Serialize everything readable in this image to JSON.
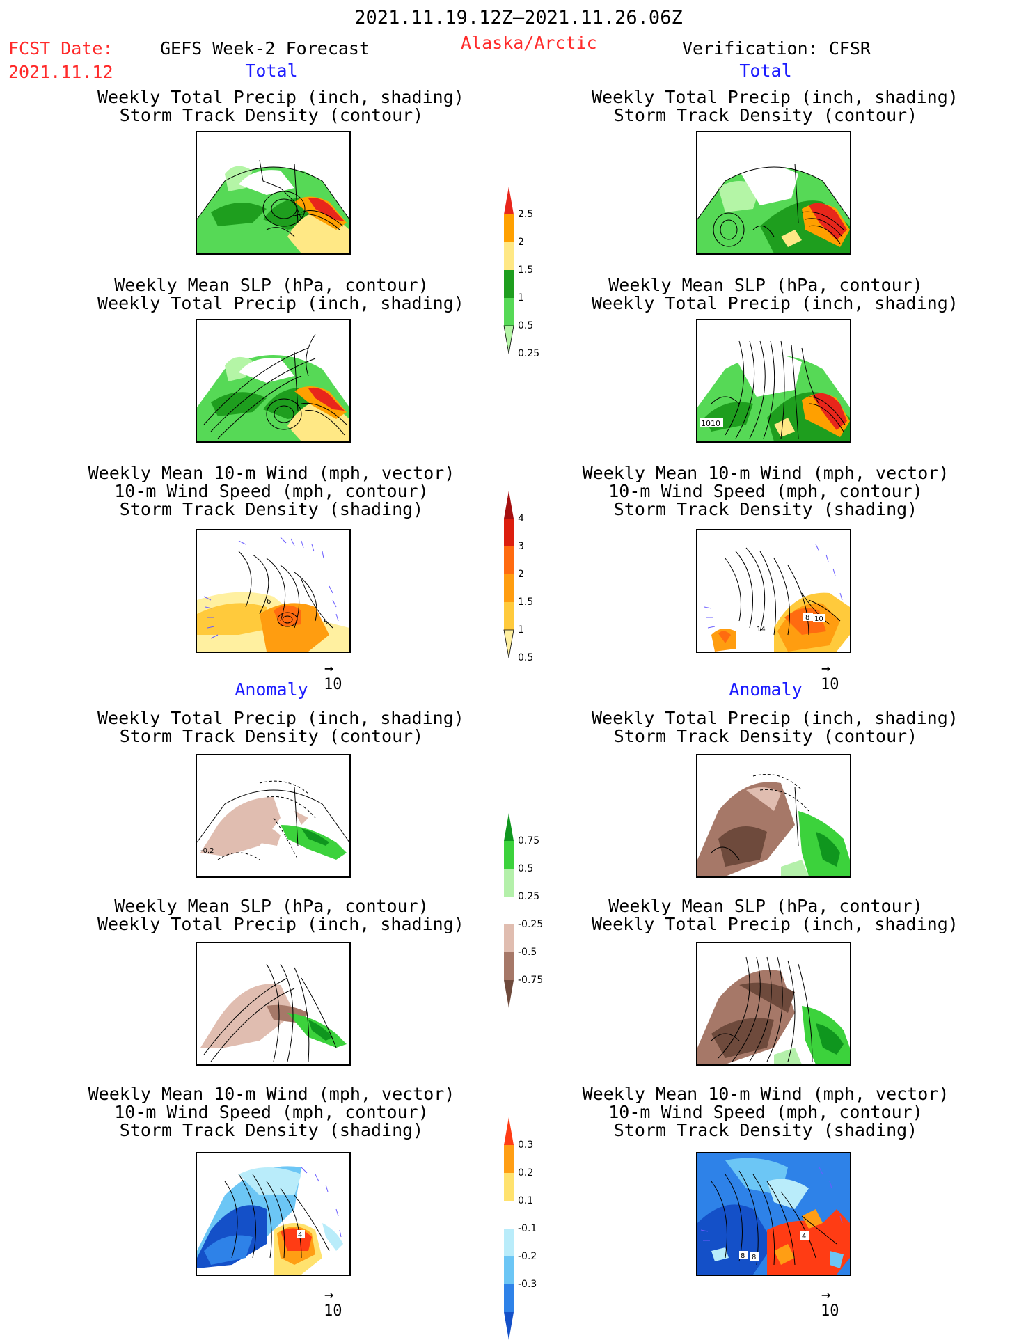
{
  "header": {
    "date_range": "2021.11.19.12Z–2021.11.26.06Z",
    "fcst_label": "FCST Date:",
    "fcst_date": "2021.11.12",
    "model": "GEFS Week-2 Forecast",
    "region": "Alaska/Arctic",
    "verification": "Verification: CFSR"
  },
  "sections": {
    "total": "Total",
    "anomaly": "Anomaly"
  },
  "panel_titles": {
    "precip_storm": [
      "Weekly Total Precip (inch, shading)",
      "Storm Track Density (contour)"
    ],
    "slp_precip": [
      "Weekly Mean SLP (hPa, contour)",
      "Weekly Total Precip (inch, shading)"
    ],
    "wind_storm": [
      "Weekly Mean 10-m Wind (mph, vector)",
      "10-m Wind Speed (mph, contour)",
      "Storm Track Density (shading)"
    ]
  },
  "vector_reference": "10",
  "map_labels": {
    "slp_1010": "1010",
    "anom_m02": "-0.2",
    "wind_6": "6",
    "wind_5": "5",
    "wind_8": "8",
    "wind_10": "10",
    "wind_14": "14",
    "wind_4": "4"
  },
  "colorbars": {
    "precip_total": {
      "labels": [
        "2.5",
        "2",
        "1.5",
        "1",
        "0.5",
        "0.25"
      ],
      "colors": [
        "#e8261b",
        "#ffa000",
        "#ffe885",
        "#1e9e1e",
        "#56d956",
        "#b4f5a6"
      ]
    },
    "storm_total": {
      "labels": [
        "4",
        "3",
        "2",
        "1.5",
        "1",
        "0.5"
      ],
      "colors": [
        "#a50f0f",
        "#dc1e0e",
        "#ff6b10",
        "#ff9d10",
        "#ffca3c",
        "#fff0a0"
      ]
    },
    "precip_anom": {
      "labels": [
        "0.75",
        "0.5",
        "0.25",
        "-0.25",
        "-0.5",
        "-0.75"
      ],
      "colors": [
        "#0f961e",
        "#3cd23c",
        "#b4f0aa",
        "#ffffff",
        "#e0bdb0",
        "#a67868",
        "#6e4a3c"
      ]
    },
    "storm_anom": {
      "labels": [
        "0.3",
        "0.2",
        "0.1",
        "-0.1",
        "-0.2",
        "-0.3"
      ],
      "colors": [
        "#ff3c14",
        "#ff9e14",
        "#ffe26e",
        "#ffffff",
        "#b9ecfa",
        "#6cc6f5",
        "#2e82e8",
        "#1450c8"
      ]
    }
  }
}
